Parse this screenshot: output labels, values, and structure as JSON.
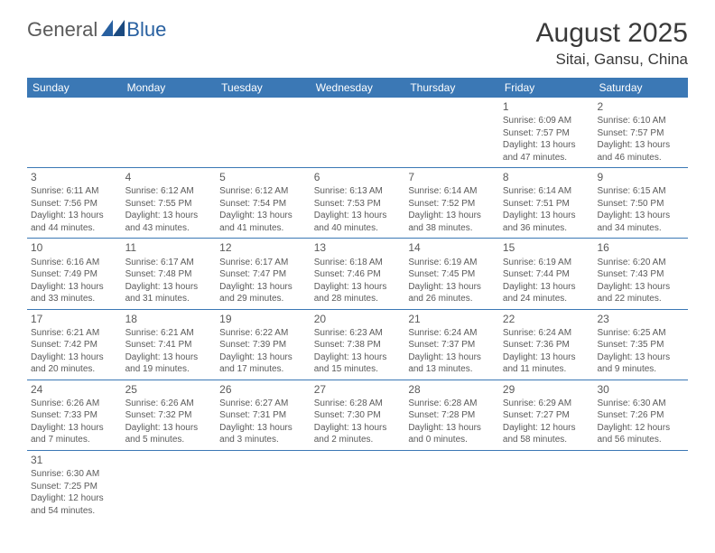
{
  "logo": {
    "text1": "General",
    "text2": "Blue"
  },
  "title": "August 2025",
  "location": "Sitai, Gansu, China",
  "colors": {
    "header_bg": "#3b78b5",
    "header_fg": "#ffffff",
    "border": "#3b78b5",
    "text": "#5a5a5a",
    "title_text": "#3a3a3a"
  },
  "dayNames": [
    "Sunday",
    "Monday",
    "Tuesday",
    "Wednesday",
    "Thursday",
    "Friday",
    "Saturday"
  ],
  "weeks": [
    [
      null,
      null,
      null,
      null,
      null,
      {
        "d": "1",
        "sr": "Sunrise: 6:09 AM",
        "ss": "Sunset: 7:57 PM",
        "dl1": "Daylight: 13 hours",
        "dl2": "and 47 minutes."
      },
      {
        "d": "2",
        "sr": "Sunrise: 6:10 AM",
        "ss": "Sunset: 7:57 PM",
        "dl1": "Daylight: 13 hours",
        "dl2": "and 46 minutes."
      }
    ],
    [
      {
        "d": "3",
        "sr": "Sunrise: 6:11 AM",
        "ss": "Sunset: 7:56 PM",
        "dl1": "Daylight: 13 hours",
        "dl2": "and 44 minutes."
      },
      {
        "d": "4",
        "sr": "Sunrise: 6:12 AM",
        "ss": "Sunset: 7:55 PM",
        "dl1": "Daylight: 13 hours",
        "dl2": "and 43 minutes."
      },
      {
        "d": "5",
        "sr": "Sunrise: 6:12 AM",
        "ss": "Sunset: 7:54 PM",
        "dl1": "Daylight: 13 hours",
        "dl2": "and 41 minutes."
      },
      {
        "d": "6",
        "sr": "Sunrise: 6:13 AM",
        "ss": "Sunset: 7:53 PM",
        "dl1": "Daylight: 13 hours",
        "dl2": "and 40 minutes."
      },
      {
        "d": "7",
        "sr": "Sunrise: 6:14 AM",
        "ss": "Sunset: 7:52 PM",
        "dl1": "Daylight: 13 hours",
        "dl2": "and 38 minutes."
      },
      {
        "d": "8",
        "sr": "Sunrise: 6:14 AM",
        "ss": "Sunset: 7:51 PM",
        "dl1": "Daylight: 13 hours",
        "dl2": "and 36 minutes."
      },
      {
        "d": "9",
        "sr": "Sunrise: 6:15 AM",
        "ss": "Sunset: 7:50 PM",
        "dl1": "Daylight: 13 hours",
        "dl2": "and 34 minutes."
      }
    ],
    [
      {
        "d": "10",
        "sr": "Sunrise: 6:16 AM",
        "ss": "Sunset: 7:49 PM",
        "dl1": "Daylight: 13 hours",
        "dl2": "and 33 minutes."
      },
      {
        "d": "11",
        "sr": "Sunrise: 6:17 AM",
        "ss": "Sunset: 7:48 PM",
        "dl1": "Daylight: 13 hours",
        "dl2": "and 31 minutes."
      },
      {
        "d": "12",
        "sr": "Sunrise: 6:17 AM",
        "ss": "Sunset: 7:47 PM",
        "dl1": "Daylight: 13 hours",
        "dl2": "and 29 minutes."
      },
      {
        "d": "13",
        "sr": "Sunrise: 6:18 AM",
        "ss": "Sunset: 7:46 PM",
        "dl1": "Daylight: 13 hours",
        "dl2": "and 28 minutes."
      },
      {
        "d": "14",
        "sr": "Sunrise: 6:19 AM",
        "ss": "Sunset: 7:45 PM",
        "dl1": "Daylight: 13 hours",
        "dl2": "and 26 minutes."
      },
      {
        "d": "15",
        "sr": "Sunrise: 6:19 AM",
        "ss": "Sunset: 7:44 PM",
        "dl1": "Daylight: 13 hours",
        "dl2": "and 24 minutes."
      },
      {
        "d": "16",
        "sr": "Sunrise: 6:20 AM",
        "ss": "Sunset: 7:43 PM",
        "dl1": "Daylight: 13 hours",
        "dl2": "and 22 minutes."
      }
    ],
    [
      {
        "d": "17",
        "sr": "Sunrise: 6:21 AM",
        "ss": "Sunset: 7:42 PM",
        "dl1": "Daylight: 13 hours",
        "dl2": "and 20 minutes."
      },
      {
        "d": "18",
        "sr": "Sunrise: 6:21 AM",
        "ss": "Sunset: 7:41 PM",
        "dl1": "Daylight: 13 hours",
        "dl2": "and 19 minutes."
      },
      {
        "d": "19",
        "sr": "Sunrise: 6:22 AM",
        "ss": "Sunset: 7:39 PM",
        "dl1": "Daylight: 13 hours",
        "dl2": "and 17 minutes."
      },
      {
        "d": "20",
        "sr": "Sunrise: 6:23 AM",
        "ss": "Sunset: 7:38 PM",
        "dl1": "Daylight: 13 hours",
        "dl2": "and 15 minutes."
      },
      {
        "d": "21",
        "sr": "Sunrise: 6:24 AM",
        "ss": "Sunset: 7:37 PM",
        "dl1": "Daylight: 13 hours",
        "dl2": "and 13 minutes."
      },
      {
        "d": "22",
        "sr": "Sunrise: 6:24 AM",
        "ss": "Sunset: 7:36 PM",
        "dl1": "Daylight: 13 hours",
        "dl2": "and 11 minutes."
      },
      {
        "d": "23",
        "sr": "Sunrise: 6:25 AM",
        "ss": "Sunset: 7:35 PM",
        "dl1": "Daylight: 13 hours",
        "dl2": "and 9 minutes."
      }
    ],
    [
      {
        "d": "24",
        "sr": "Sunrise: 6:26 AM",
        "ss": "Sunset: 7:33 PM",
        "dl1": "Daylight: 13 hours",
        "dl2": "and 7 minutes."
      },
      {
        "d": "25",
        "sr": "Sunrise: 6:26 AM",
        "ss": "Sunset: 7:32 PM",
        "dl1": "Daylight: 13 hours",
        "dl2": "and 5 minutes."
      },
      {
        "d": "26",
        "sr": "Sunrise: 6:27 AM",
        "ss": "Sunset: 7:31 PM",
        "dl1": "Daylight: 13 hours",
        "dl2": "and 3 minutes."
      },
      {
        "d": "27",
        "sr": "Sunrise: 6:28 AM",
        "ss": "Sunset: 7:30 PM",
        "dl1": "Daylight: 13 hours",
        "dl2": "and 2 minutes."
      },
      {
        "d": "28",
        "sr": "Sunrise: 6:28 AM",
        "ss": "Sunset: 7:28 PM",
        "dl1": "Daylight: 13 hours",
        "dl2": "and 0 minutes."
      },
      {
        "d": "29",
        "sr": "Sunrise: 6:29 AM",
        "ss": "Sunset: 7:27 PM",
        "dl1": "Daylight: 12 hours",
        "dl2": "and 58 minutes."
      },
      {
        "d": "30",
        "sr": "Sunrise: 6:30 AM",
        "ss": "Sunset: 7:26 PM",
        "dl1": "Daylight: 12 hours",
        "dl2": "and 56 minutes."
      }
    ],
    [
      {
        "d": "31",
        "sr": "Sunrise: 6:30 AM",
        "ss": "Sunset: 7:25 PM",
        "dl1": "Daylight: 12 hours",
        "dl2": "and 54 minutes."
      },
      null,
      null,
      null,
      null,
      null,
      null
    ]
  ]
}
